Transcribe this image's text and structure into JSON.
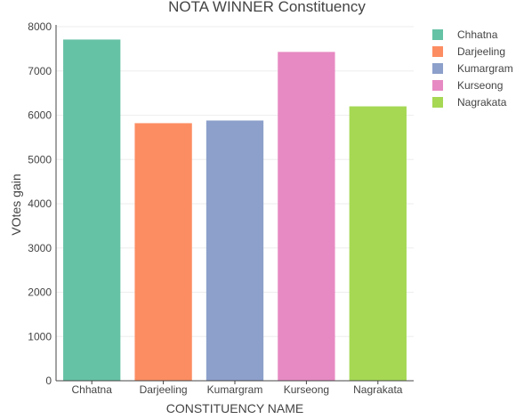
{
  "chart_data": {
    "type": "bar",
    "title": "NOTA WINNER  Constituency",
    "xlabel": "CONSTITUENCY NAME",
    "ylabel": "VOtes gain",
    "categories": [
      "Chhatna",
      "Darjeeling",
      "Kumargram",
      "Kurseong",
      "Nagrakata"
    ],
    "values": [
      7710,
      5820,
      5880,
      7430,
      6200
    ],
    "colors": [
      "#66c2a5",
      "#fc8d62",
      "#8da0cb",
      "#e78ac3",
      "#a6d854"
    ],
    "ylim": [
      0,
      8000
    ],
    "yticks": [
      0,
      1000,
      2000,
      3000,
      4000,
      5000,
      6000,
      7000,
      8000
    ],
    "grid": true,
    "legend": {
      "position": "top-right",
      "entries": [
        "Chhatna",
        "Darjeeling",
        "Kumargram",
        "Kurseong",
        "Nagrakata"
      ]
    }
  }
}
